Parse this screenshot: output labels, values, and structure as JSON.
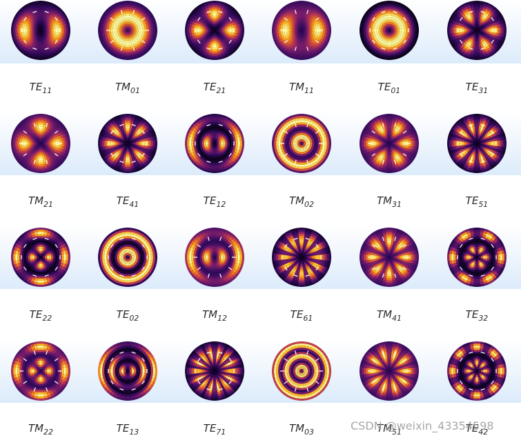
{
  "colors": {
    "band_top": "#ffffff",
    "band_bottom": "#dcebfb",
    "label": "#2b2b2b"
  },
  "modes": [
    {
      "family": "TE",
      "sub": "11"
    },
    {
      "family": "TM",
      "sub": "01"
    },
    {
      "family": "TE",
      "sub": "21"
    },
    {
      "family": "TM",
      "sub": "11"
    },
    {
      "family": "TE",
      "sub": "01"
    },
    {
      "family": "TE",
      "sub": "31"
    },
    {
      "family": "TM",
      "sub": "21"
    },
    {
      "family": "TE",
      "sub": "41"
    },
    {
      "family": "TE",
      "sub": "12"
    },
    {
      "family": "TM",
      "sub": "02"
    },
    {
      "family": "TM",
      "sub": "31"
    },
    {
      "family": "TE",
      "sub": "51"
    },
    {
      "family": "TE",
      "sub": "22"
    },
    {
      "family": "TE",
      "sub": "02"
    },
    {
      "family": "TM",
      "sub": "12"
    },
    {
      "family": "TE",
      "sub": "61"
    },
    {
      "family": "TM",
      "sub": "41"
    },
    {
      "family": "TE",
      "sub": "32"
    },
    {
      "family": "TM",
      "sub": "22"
    },
    {
      "family": "TE",
      "sub": "13"
    },
    {
      "family": "TE",
      "sub": "71"
    },
    {
      "family": "TM",
      "sub": "03"
    },
    {
      "family": "TM",
      "sub": "51"
    },
    {
      "family": "TE",
      "sub": "42"
    }
  ],
  "watermark": "CSDN @weixin_43354598"
}
